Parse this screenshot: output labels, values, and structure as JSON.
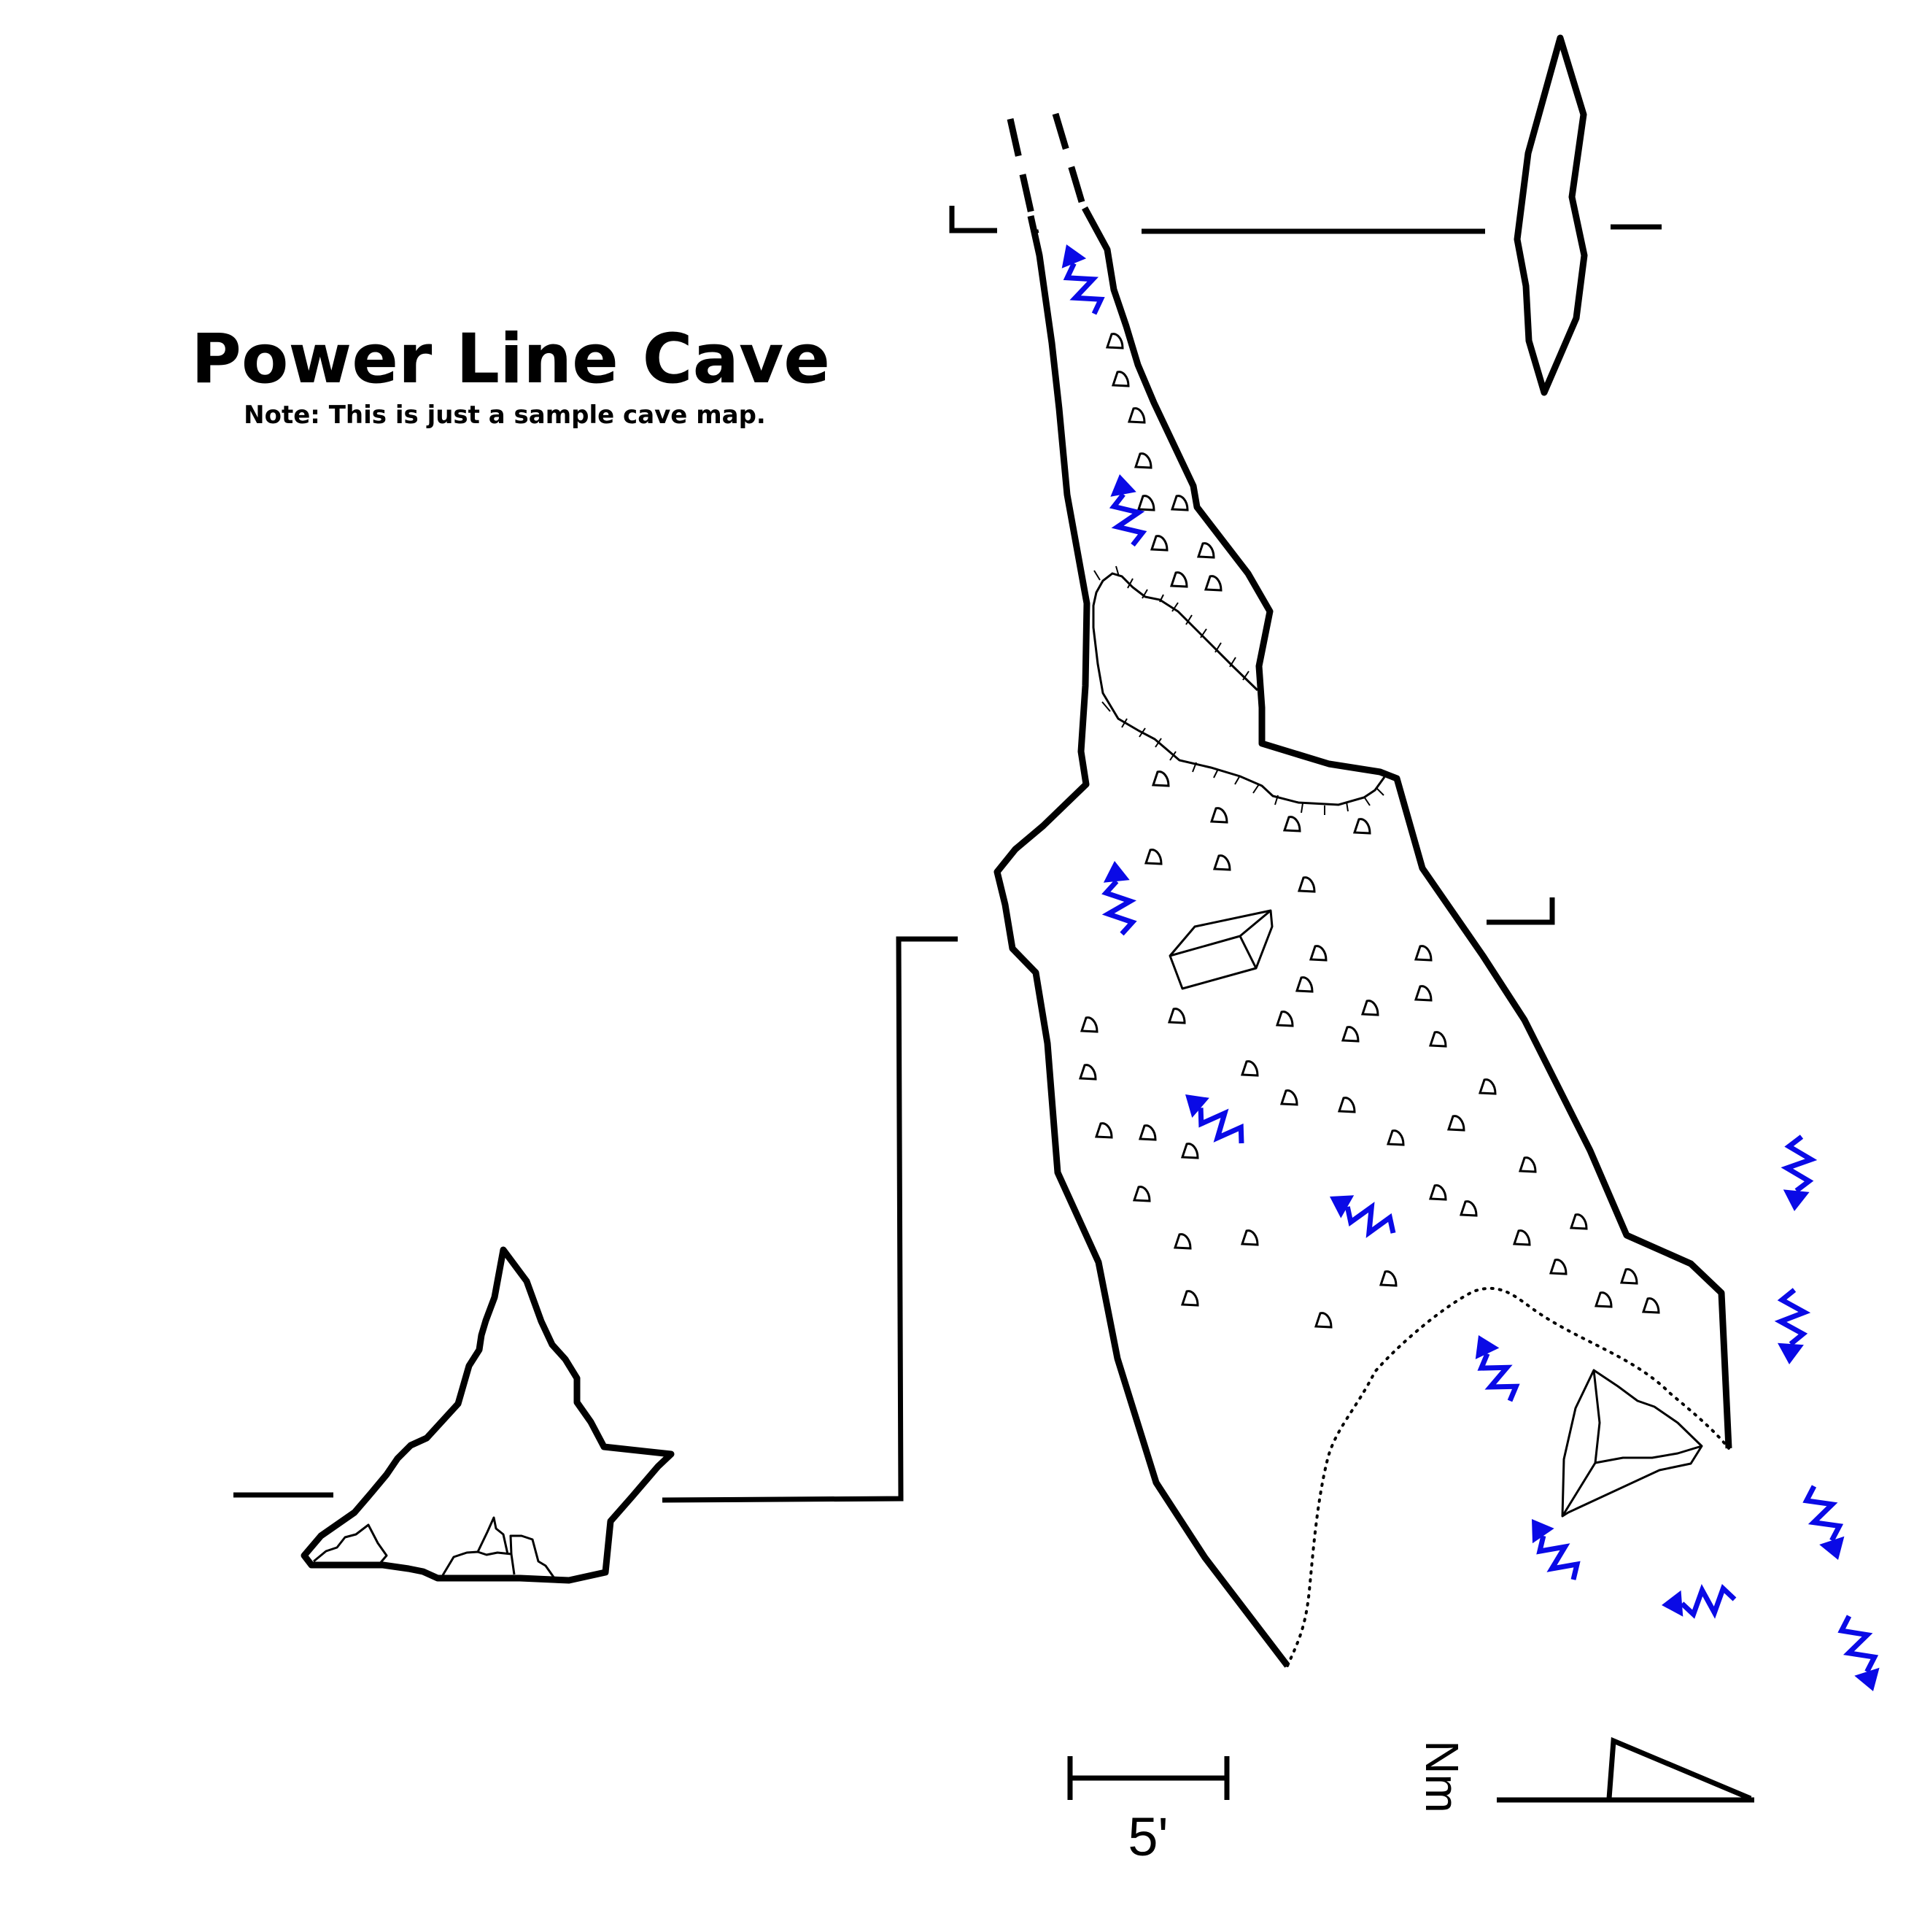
{
  "map": {
    "title": "Power Line Cave",
    "note": "Note: This is just a sample cave map.",
    "scale_label": "5'",
    "north_label": "Nm",
    "colors": {
      "walls": "#000000",
      "airflow_arrows": "#0a0ae6",
      "background": "#ffffff"
    },
    "symbols": {
      "airflow": "blue zigzag arrow",
      "breakdown": "block outline",
      "floor_texture": "small D-shaped marks",
      "ledge": "ticked line",
      "drip_line": "dotted line"
    }
  }
}
